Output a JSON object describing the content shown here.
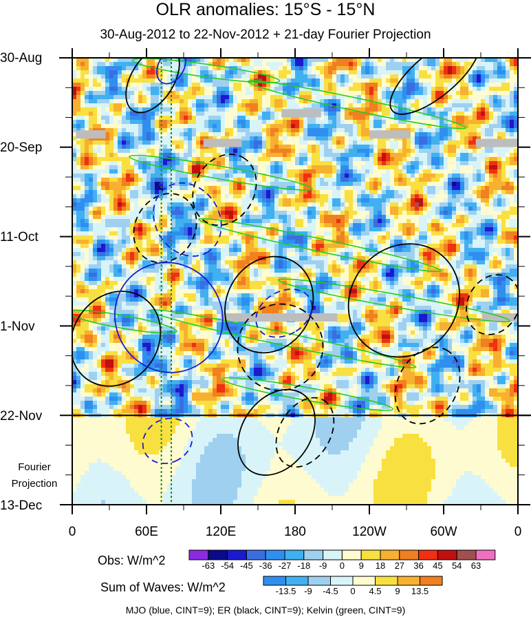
{
  "chart_data": {
    "type": "heatmap",
    "title": "OLR anomalies: 15°S - 15°N",
    "subtitle": "30-Aug-2012 to 22-Nov-2012 + 21-day Fourier Projection",
    "x_ticks": [
      "0",
      "60E",
      "120E",
      "180",
      "120W",
      "60W",
      "0"
    ],
    "x_tick_longitudes": [
      0,
      60,
      120,
      180,
      240,
      300,
      360
    ],
    "y_ticks": [
      "30-Aug",
      "20-Sep",
      "11-Oct",
      "1-Nov",
      "22-Nov",
      "13-Dec"
    ],
    "y_tick_days": [
      0,
      21,
      42,
      63,
      84,
      105
    ],
    "projection_start_day": 84,
    "projection_label": [
      "Fourier",
      "Projection"
    ],
    "obs_legend": {
      "label": "Obs: W/m^2",
      "levels": [
        "-63",
        "-54",
        "-45",
        "-36",
        "-27",
        "-18",
        "-9",
        "0",
        "9",
        "18",
        "27",
        "36",
        "45",
        "54",
        "63"
      ],
      "colors": [
        "#8a2be2",
        "#0a0a8c",
        "#1a1ad0",
        "#3a6ee0",
        "#2f8ff0",
        "#40b0f0",
        "#a0d0f0",
        "#d8f4f8",
        "#fffbd0",
        "#f8e040",
        "#f8b030",
        "#f08020",
        "#f03010",
        "#c01010",
        "#a05050",
        "#f070c0"
      ]
    },
    "waves_legend": {
      "label": "Sum of Waves: W/m^2",
      "levels": [
        "-13.5",
        "-9",
        "-4.5",
        "0",
        "4.5",
        "9",
        "13.5"
      ],
      "colors": [
        "#2f8ff0",
        "#40b0f0",
        "#a0d0f0",
        "#d8f4f8",
        "#fffbd0",
        "#f8e040",
        "#f8b030",
        "#f08020"
      ]
    },
    "contours_note": "MJO (blue, CINT=9); ER (black, CINT=9); Kelvin (green, CINT=9)",
    "reference_longitudes": [
      72,
      80
    ],
    "missing_data_segments": [
      {
        "lon_start": 3,
        "lon_end": 27,
        "day": 18
      },
      {
        "lon_start": 106,
        "lon_end": 137,
        "day": 20
      },
      {
        "lon_start": 169,
        "lon_end": 201,
        "day": 13
      },
      {
        "lon_start": 240,
        "lon_end": 273,
        "day": 18
      },
      {
        "lon_start": 326,
        "lon_end": 365,
        "day": 20
      },
      {
        "lon_start": 120,
        "lon_end": 214,
        "day": 61
      },
      {
        "lon_start": 331,
        "lon_end": 420,
        "day": 61
      }
    ],
    "mjo_blue": [
      {
        "lon": 80,
        "day": 2,
        "dlon": 30,
        "dday": 6,
        "angle": -60,
        "dash": false
      },
      {
        "lon": 93,
        "day": 38,
        "dlon": 62,
        "dday": 15,
        "angle": 57,
        "dash": true
      },
      {
        "lon": 78,
        "day": 61,
        "dlon": 90,
        "dday": 25,
        "angle": 56,
        "dash": false
      },
      {
        "lon": 171,
        "day": 60,
        "dlon": 35,
        "dday": 14,
        "angle": 60,
        "dash": true
      },
      {
        "lon": 77,
        "day": 90,
        "dlon": 35,
        "dday": 12,
        "angle": 62,
        "dash": true
      }
    ],
    "er_black": [
      {
        "lon": 65,
        "day": 5,
        "dlon": 60,
        "dday": 10,
        "angle": -58,
        "dash": false
      },
      {
        "lon": 293,
        "day": 4,
        "dlon": 90,
        "dday": 10,
        "angle": -40,
        "dash": false
      },
      {
        "lon": 75,
        "day": 40,
        "dlon": 58,
        "dday": 14,
        "angle": -60,
        "dash": true
      },
      {
        "lon": 123,
        "day": 31,
        "dlon": 60,
        "dday": 14,
        "angle": -60,
        "dash": true
      },
      {
        "lon": 159,
        "day": 58,
        "dlon": 80,
        "dday": 20,
        "angle": -62,
        "dash": false
      },
      {
        "lon": 268,
        "day": 57,
        "dlon": 95,
        "dday": 25,
        "angle": -50,
        "dash": false
      },
      {
        "lon": 35,
        "day": 66,
        "dlon": 80,
        "dday": 20,
        "angle": -55,
        "dash": false
      },
      {
        "lon": 168,
        "day": 68,
        "dlon": 70,
        "dday": 20,
        "angle": -62,
        "dash": true
      },
      {
        "lon": 287,
        "day": 77,
        "dlon": 65,
        "dday": 14,
        "angle": -62,
        "dash": true
      },
      {
        "lon": 165,
        "day": 88,
        "dlon": 75,
        "dday": 16,
        "angle": -55,
        "dash": false
      },
      {
        "lon": 340,
        "day": 58,
        "dlon": 50,
        "dday": 12,
        "angle": -62,
        "dash": true
      },
      {
        "lon": 188,
        "day": 88,
        "dlon": 60,
        "dday": 12,
        "angle": -60,
        "dash": true
      }
    ],
    "kelvin_green": [
      {
        "lon": 108,
        "day": 3,
        "dlon": 120,
        "dday": 3,
        "angle": 8
      },
      {
        "lon": 230,
        "day": 11,
        "dlon": 180,
        "dday": 3,
        "angle": 12
      },
      {
        "lon": 120,
        "day": 27,
        "dlon": 150,
        "dday": 3,
        "angle": 10
      },
      {
        "lon": 200,
        "day": 44,
        "dlon": 200,
        "dday": 3,
        "angle": 12
      },
      {
        "lon": 260,
        "day": 57,
        "dlon": 190,
        "dday": 3,
        "angle": 10
      },
      {
        "lon": 170,
        "day": 66,
        "dlon": 220,
        "dday": 3,
        "angle": 12
      },
      {
        "lon": 40,
        "day": 62,
        "dlon": 90,
        "dday": 3,
        "angle": 10
      },
      {
        "lon": 190,
        "day": 79,
        "dlon": 140,
        "dday": 3,
        "angle": 10
      }
    ]
  }
}
